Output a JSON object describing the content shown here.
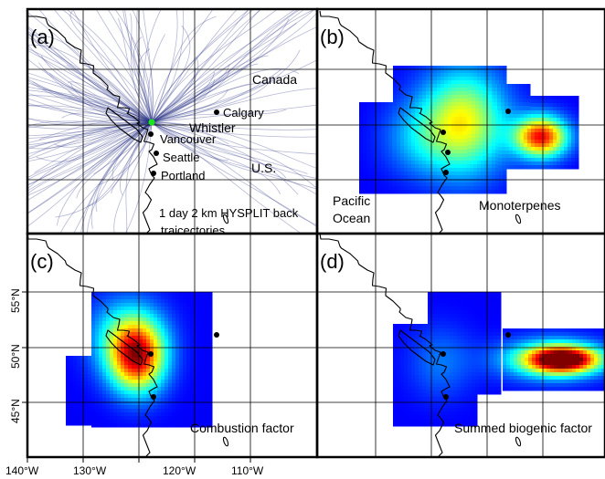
{
  "panels": {
    "a": {
      "letter": "(a)",
      "labels": {
        "canada": "Canada",
        "calgary": "Calgary",
        "whistler": "Whistler",
        "vancouver": "Vancouver",
        "seattle": "Seattle",
        "portland": "Portland",
        "us": "U.S.",
        "hysplit": "1 day 2 km HYSPLIT back",
        "hysplit2": "traicectories"
      }
    },
    "b": {
      "letter": "(b)",
      "labels": {
        "pacific": "Pacific",
        "ocean": "Ocean",
        "factor": "Monoterpenes"
      }
    },
    "c": {
      "letter": "(c)",
      "labels": {
        "factor": "Combustion factor"
      }
    },
    "d": {
      "letter": "(d)",
      "labels": {
        "factor": "Summed biogenic factor"
      }
    }
  },
  "axes": {
    "longitude_ticks": [
      "140°W",
      "130°W",
      "120°W",
      "110°W"
    ],
    "latitude_ticks": [
      "55°N",
      "50°N",
      "45°N"
    ]
  },
  "colors": {
    "trajectory": "#2a3486",
    "site_marker": "#19e619",
    "city_marker": "#000000",
    "colormap": "jet"
  }
}
